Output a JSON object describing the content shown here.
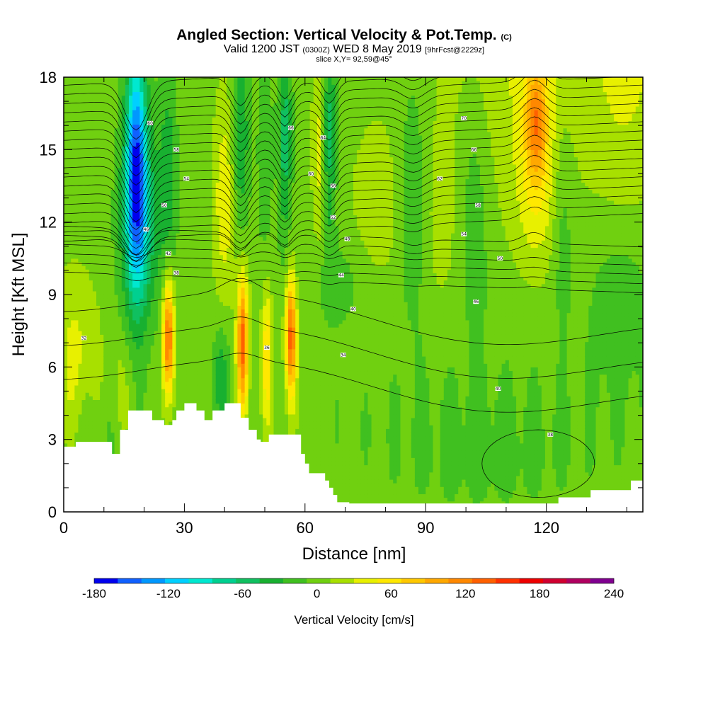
{
  "chart_data": {
    "type": "heatmap",
    "title": "Angled Section: Vertical Velocity & Pot.Temp.",
    "title_units": "(C)",
    "subtitle_valid": "Valid 1200 JST",
    "subtitle_utc": "(0300Z)",
    "subtitle_date": "WED 8 May 2019",
    "subtitle_fcst": "[9hrFcst@2229z]",
    "subtitle_slice": "slice X,Y= 92,59@45°",
    "xlabel": "Distance [nm]",
    "ylabel": "Height [Kft MSL]",
    "xlim": [
      0,
      144
    ],
    "ylim": [
      0,
      18
    ],
    "xticks": [
      "0",
      "30",
      "60",
      "90",
      "120"
    ],
    "yticks": [
      "0",
      "3",
      "6",
      "9",
      "12",
      "15",
      "18"
    ],
    "colorbar": {
      "label": "Vertical Velocity [cm/s]",
      "range": [
        -180,
        240
      ],
      "step": 20,
      "tick_labels": [
        "-180",
        "-120",
        "-60",
        "0",
        "60",
        "120",
        "180",
        "240"
      ],
      "colors": [
        "#0000ee",
        "#1060ff",
        "#0098ff",
        "#00d0ff",
        "#00e8d0",
        "#00d090",
        "#10c060",
        "#18b030",
        "#40c020",
        "#70d010",
        "#a8e000",
        "#e8f000",
        "#ffe800",
        "#ffc800",
        "#ffa800",
        "#ff8800",
        "#ff6000",
        "#ff3000",
        "#ee0000",
        "#d00030",
        "#b00060",
        "#800090"
      ]
    },
    "terrain_kft": {
      "x": [
        0,
        3,
        10,
        12,
        14,
        16,
        19,
        22,
        25,
        27,
        28,
        30,
        33,
        35,
        37,
        40,
        42,
        44,
        46,
        48,
        49,
        51,
        54,
        57,
        59,
        60,
        61,
        62,
        63,
        64,
        65,
        66,
        67,
        68,
        71,
        76,
        80,
        90,
        100,
        108,
        114,
        120,
        123,
        128,
        131,
        136,
        140,
        141,
        144
      ],
      "height": [
        2.7,
        2.9,
        2.9,
        2.4,
        3.4,
        4.2,
        4.2,
        3.8,
        3.6,
        3.8,
        4.2,
        4.5,
        4.2,
        3.8,
        4.2,
        4.5,
        4.5,
        3.9,
        3.4,
        3.0,
        2.9,
        3.2,
        3.2,
        3.2,
        2.4,
        2.0,
        1.6,
        1.6,
        1.6,
        1.6,
        1.3,
        1.0,
        0.7,
        0.4,
        0.35,
        0.35,
        0.35,
        0.35,
        0.35,
        0.35,
        0.35,
        0.35,
        0.6,
        0.6,
        0.9,
        0.9,
        0.9,
        1.3,
        1.3
      ]
    },
    "updraft_cores": [
      {
        "x_nm": 26,
        "peak_cm_s": 150
      },
      {
        "x_nm": 44.5,
        "peak_cm_s": 150
      },
      {
        "x_nm": 50.5,
        "peak_cm_s": 90
      },
      {
        "x_nm": 56.5,
        "peak_cm_s": 150
      },
      {
        "x_nm": 117.5,
        "peak_cm_s": 100
      }
    ],
    "downdraft_cores": [
      {
        "x_nm": 18,
        "min_cm_s": -130
      },
      {
        "x_nm": 44,
        "min_cm_s": -80
      },
      {
        "x_nm": 55,
        "min_cm_s": -70
      },
      {
        "x_nm": 66,
        "min_cm_s": -70
      }
    ],
    "contour_labels": [
      {
        "x": 5,
        "y": 7.2,
        "text": "32"
      },
      {
        "x": 21.5,
        "y": 16.1,
        "text": "60"
      },
      {
        "x": 28,
        "y": 15.0,
        "text": "58"
      },
      {
        "x": 30.5,
        "y": 13.8,
        "text": "54"
      },
      {
        "x": 25,
        "y": 12.7,
        "text": "50"
      },
      {
        "x": 20.5,
        "y": 11.7,
        "text": "46"
      },
      {
        "x": 26,
        "y": 10.7,
        "text": "42"
      },
      {
        "x": 28,
        "y": 9.9,
        "text": "38"
      },
      {
        "x": 56.5,
        "y": 15.9,
        "text": "66"
      },
      {
        "x": 64.5,
        "y": 15.5,
        "text": "64"
      },
      {
        "x": 61.5,
        "y": 14.0,
        "text": "60"
      },
      {
        "x": 67,
        "y": 13.5,
        "text": "56"
      },
      {
        "x": 67,
        "y": 12.2,
        "text": "52"
      },
      {
        "x": 70.5,
        "y": 11.3,
        "text": "48"
      },
      {
        "x": 69,
        "y": 9.8,
        "text": "44"
      },
      {
        "x": 72,
        "y": 8.4,
        "text": "40"
      },
      {
        "x": 50.5,
        "y": 6.8,
        "text": "36"
      },
      {
        "x": 69.5,
        "y": 6.5,
        "text": "34"
      },
      {
        "x": 99.5,
        "y": 16.3,
        "text": "70"
      },
      {
        "x": 102,
        "y": 15.0,
        "text": "66"
      },
      {
        "x": 93.5,
        "y": 13.8,
        "text": "62"
      },
      {
        "x": 103,
        "y": 12.7,
        "text": "58"
      },
      {
        "x": 99.5,
        "y": 11.5,
        "text": "54"
      },
      {
        "x": 108.5,
        "y": 10.5,
        "text": "50"
      },
      {
        "x": 102.5,
        "y": 8.7,
        "text": "46"
      },
      {
        "x": 108,
        "y": 5.1,
        "text": "40"
      },
      {
        "x": 121,
        "y": 3.2,
        "text": "38"
      }
    ]
  }
}
